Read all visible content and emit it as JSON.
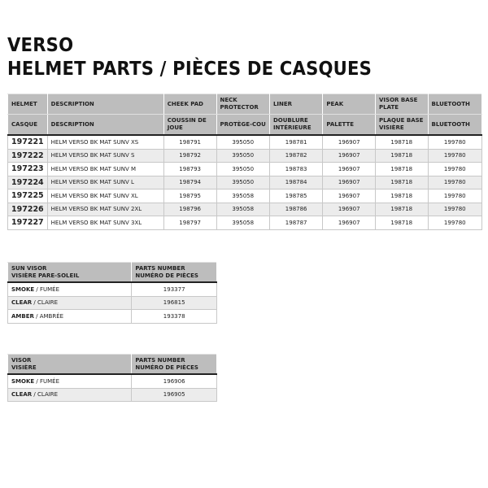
{
  "title_line1": "VERSO",
  "title_line2": "HELMET PARTS / PIÈCES DE CASQUES",
  "main_table": {
    "header_en": [
      "HELMET",
      "DESCRIPTION",
      "CHEEK PAD",
      "NECK PROTECTOR",
      "LINER",
      "PEAK",
      "VISOR BASE PLATE",
      "BLUETOOTH"
    ],
    "header_fr": [
      "CASQUE",
      "DESCRIPTION",
      "COUSSIN DE JOUE",
      "PROTÈGE-COU",
      "DOUBLURE INTÉRIEURE",
      "PALETTE",
      "PLAQUE BASE VISIÈRE",
      "BLUETOOTH"
    ],
    "rows": [
      [
        "197221",
        "HELM VERSO BK MAT SUNV XS",
        "198791",
        "395050",
        "198781",
        "196907",
        "198718",
        "199780"
      ],
      [
        "197222",
        "HELM VERSO BK MAT SUNV S",
        "198792",
        "395050",
        "198782",
        "196907",
        "198718",
        "199780"
      ],
      [
        "197223",
        "HELM VERSO BK MAT SUNV M",
        "198793",
        "395050",
        "198783",
        "196907",
        "198718",
        "199780"
      ],
      [
        "197224",
        "HELM VERSO BK MAT SUNV L",
        "198794",
        "395050",
        "198784",
        "196907",
        "198718",
        "199780"
      ],
      [
        "197225",
        "HELM VERSO BK MAT SUNV XL",
        "198795",
        "395058",
        "198785",
        "196907",
        "198718",
        "199780"
      ],
      [
        "197226",
        "HELM VERSO BK MAT SUNV 2XL",
        "198796",
        "395058",
        "198786",
        "196907",
        "198718",
        "199780"
      ],
      [
        "197227",
        "HELM VERSO BK MAT SUNV 3XL",
        "198797",
        "395058",
        "198787",
        "196907",
        "198718",
        "199780"
      ]
    ]
  },
  "sun_visor_table": {
    "header": [
      "SUN VISOR",
      "VISIÈRE PARE-SOLEIL",
      "PARTS NUMBER",
      "NUMÉRO DE PIÈCES"
    ],
    "rows": [
      {
        "en": "SMOKE",
        "fr": " / FUMÉE",
        "part": "193377"
      },
      {
        "en": "CLEAR",
        "fr": " / CLAIRE",
        "part": "196815"
      },
      {
        "en": "AMBER",
        "fr": " / AMBRÉE",
        "part": "193378"
      }
    ]
  },
  "visor_table": {
    "header": [
      "VISOR",
      "VISIÈRE",
      "PARTS NUMBER",
      "NUMÉRO DE PIÈCES"
    ],
    "rows": [
      {
        "en": "SMOKE",
        "fr": " / FUMÉE",
        "part": "196906"
      },
      {
        "en": "CLEAR",
        "fr": " / CLAIRE",
        "part": "196905"
      }
    ]
  }
}
